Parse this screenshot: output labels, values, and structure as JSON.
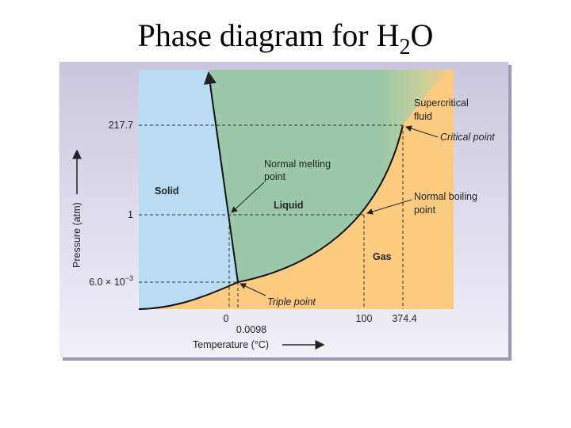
{
  "title": {
    "text": "Phase diagram for H",
    "subscript": "2",
    "suffix": "O"
  },
  "axes": {
    "y_label": "Pressure (atm)",
    "x_label": "Temperature (°C)",
    "y_ticks": [
      "217.7",
      "1",
      {
        "base": "6.0 × 10",
        "exponent": "−3"
      }
    ],
    "x_ticks": [
      "0",
      "0.0098",
      "100",
      "374.4"
    ]
  },
  "regions": {
    "solid": "Solid",
    "liquid": "Liquid",
    "gas": "Gas",
    "supercritical": [
      "Supercritical",
      "fluid"
    ]
  },
  "annotations": {
    "critical_point": "Critical point",
    "normal_melting_point": [
      "Normal melting",
      "point"
    ],
    "normal_boiling_point": [
      "Normal boiling",
      "point"
    ],
    "triple_point": "Triple point"
  }
}
